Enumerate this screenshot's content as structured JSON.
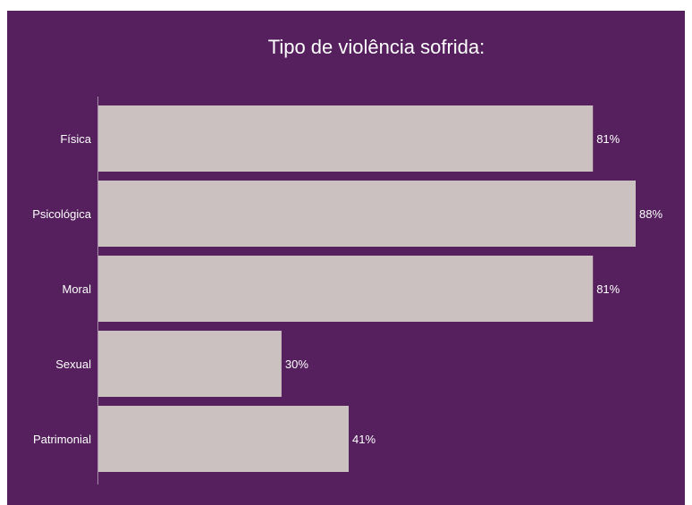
{
  "colors": {
    "background": "#55205d",
    "bar": "#cbc1c1",
    "text": "#ffffff",
    "axis": "#a58aa8"
  },
  "chart_data": {
    "type": "bar",
    "orientation": "horizontal",
    "title": "Tipo de violência sofrida:",
    "xlabel": "",
    "ylabel": "",
    "categories": [
      "Física",
      "Psicológica",
      "Moral",
      "Sexual",
      "Patrimonial"
    ],
    "values": [
      81,
      88,
      81,
      30,
      41
    ],
    "data_labels": [
      "81%",
      "88%",
      "81%",
      "30%",
      "41%"
    ],
    "xlim": [
      0,
      88
    ],
    "grid": false,
    "legend": "none"
  }
}
